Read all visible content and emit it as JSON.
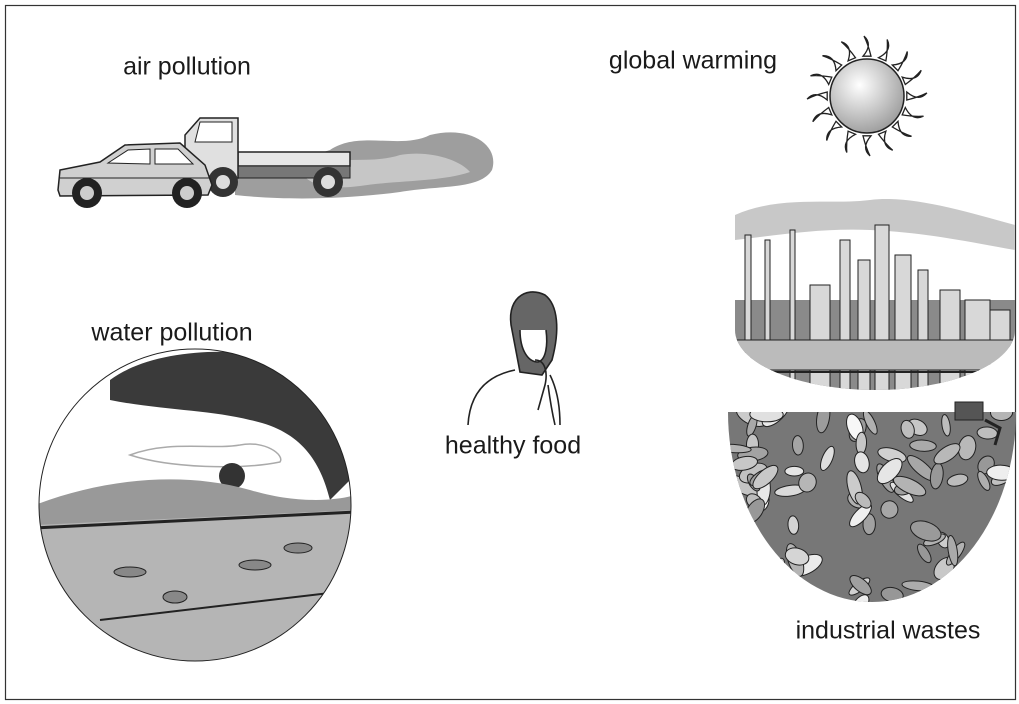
{
  "nodes": [
    {
      "label": "air pollution"
    },
    {
      "label": "global warming"
    },
    {
      "label": "water pollution"
    },
    {
      "label": "healthy food"
    },
    {
      "label": "industrial wastes"
    }
  ]
}
